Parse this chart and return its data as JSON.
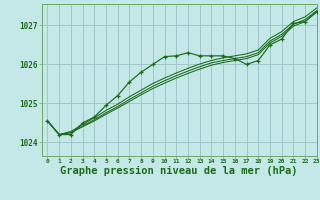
{
  "bg_color": "#c4e8e8",
  "grid_color": "#a0c8c8",
  "line_color": "#1a6b1a",
  "marker_color": "#1a6b1a",
  "xlabel": "Graphe pression niveau de la mer (hPa)",
  "xlabel_fontsize": 7.5,
  "ylabel_ticks": [
    1024,
    1025,
    1026,
    1027
  ],
  "xlim": [
    -0.5,
    23
  ],
  "ylim": [
    1023.65,
    1027.55
  ],
  "x": [
    0,
    1,
    2,
    3,
    4,
    5,
    6,
    7,
    8,
    9,
    10,
    11,
    12,
    13,
    14,
    15,
    16,
    17,
    18,
    19,
    20,
    21,
    22,
    23
  ],
  "series": {
    "marked": [
      1024.55,
      1024.2,
      1024.2,
      1024.5,
      1024.65,
      1024.95,
      1025.2,
      1025.55,
      1025.8,
      1026.0,
      1026.2,
      1026.22,
      1026.3,
      1026.22,
      1026.22,
      1026.22,
      1026.15,
      1026.0,
      1026.1,
      1026.5,
      1026.65,
      1027.05,
      1027.1,
      1027.35
    ],
    "straight1": [
      1024.55,
      1024.2,
      1024.25,
      1024.4,
      1024.55,
      1024.72,
      1024.88,
      1025.05,
      1025.22,
      1025.38,
      1025.52,
      1025.65,
      1025.77,
      1025.88,
      1025.98,
      1026.05,
      1026.1,
      1026.15,
      1026.25,
      1026.55,
      1026.72,
      1026.98,
      1027.1,
      1027.35
    ],
    "straight2": [
      1024.55,
      1024.2,
      1024.25,
      1024.42,
      1024.58,
      1024.76,
      1024.92,
      1025.1,
      1025.27,
      1025.44,
      1025.58,
      1025.71,
      1025.83,
      1025.94,
      1026.04,
      1026.1,
      1026.15,
      1026.2,
      1026.3,
      1026.6,
      1026.77,
      1027.03,
      1027.15,
      1027.38
    ],
    "straight3": [
      1024.55,
      1024.2,
      1024.28,
      1024.46,
      1024.63,
      1024.82,
      1024.98,
      1025.17,
      1025.34,
      1025.51,
      1025.65,
      1025.78,
      1025.9,
      1026.01,
      1026.1,
      1026.17,
      1026.22,
      1026.27,
      1026.37,
      1026.67,
      1026.84,
      1027.1,
      1027.22,
      1027.45
    ]
  }
}
